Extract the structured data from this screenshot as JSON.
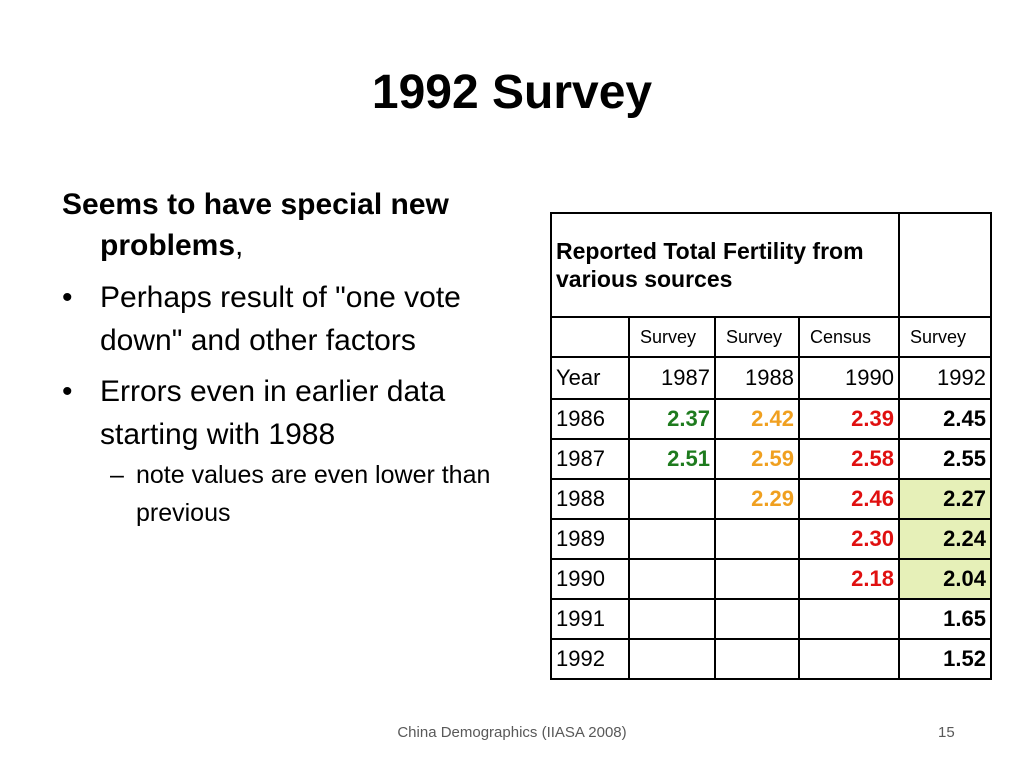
{
  "slide": {
    "title": "1992 Survey",
    "intro_bold": "Seems to have special new problems",
    "intro_tail": ",",
    "bullets": [
      {
        "text": "Perhaps result of \"one vote down\" and other factors"
      },
      {
        "text": "Errors even in earlier data starting with 1988",
        "sub": [
          "note values are even lower than previous"
        ]
      }
    ]
  },
  "table": {
    "title": "Reported Total Fertility from various sources",
    "sources": [
      "Survey",
      "Survey",
      "Census",
      "Survey"
    ],
    "year_label": "Year",
    "source_years": [
      "1987",
      "1988",
      "1990",
      "1992"
    ],
    "source_colors": [
      "#1e7b1e",
      "#f0a020",
      "#e01010",
      "#000000"
    ],
    "highlight_color": "#e6f0b8",
    "rows": [
      {
        "year": "1986",
        "values": [
          "2.37",
          "2.42",
          "2.39",
          "2.45"
        ],
        "highlight": false
      },
      {
        "year": "1987",
        "values": [
          "2.51",
          "2.59",
          "2.58",
          "2.55"
        ],
        "highlight": false
      },
      {
        "year": "1988",
        "values": [
          "",
          "2.29",
          "2.46",
          "2.27"
        ],
        "highlight": true
      },
      {
        "year": "1989",
        "values": [
          "",
          "",
          "2.30",
          "2.24"
        ],
        "highlight": true
      },
      {
        "year": "1990",
        "values": [
          "",
          "",
          "2.18",
          "2.04"
        ],
        "highlight": true
      },
      {
        "year": "1991",
        "values": [
          "",
          "",
          "",
          "1.65"
        ],
        "highlight": false
      },
      {
        "year": "1992",
        "values": [
          "",
          "",
          "",
          "1.52"
        ],
        "highlight": false
      }
    ]
  },
  "footer": {
    "text": "China Demographics (IIASA 2008)",
    "page_number": "15"
  }
}
